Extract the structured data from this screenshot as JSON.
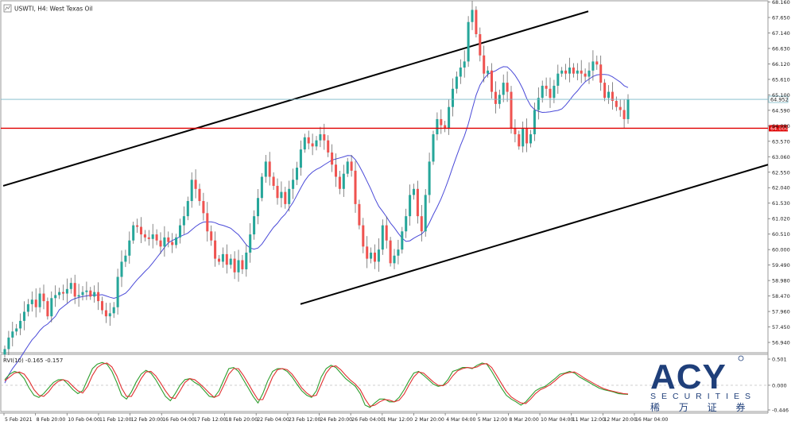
{
  "header": {
    "symbol_label": "USWTI, H4: West Texas Oil"
  },
  "indicator": {
    "label": "RVI(10) -0.165 -0.157"
  },
  "logo": {
    "brand": "ACY",
    "subtitle": "SECURITIES",
    "chinese": "稀 万 证 券"
  },
  "colors": {
    "bull": "#26a69a",
    "bear": "#ef5350",
    "ma": "#4a4ad8",
    "support_line": "#e00000",
    "price_line": "#7ab8c8",
    "channel": "#000000",
    "rvi_main": "#2e9e2e",
    "rvi_signal": "#e03030",
    "logo_blue": "#1f3f7a"
  },
  "chart_data": [
    {
      "type": "candlestick",
      "title": "USWTI, H4: West Texas Oil",
      "ylim": [
        56.6,
        68.2
      ],
      "y_tick_labels": [
        "68.160",
        "67.650",
        "67.140",
        "66.630",
        "66.120",
        "65.610",
        "65.100",
        "64.590",
        "64.080",
        "63.570",
        "63.060",
        "62.550",
        "62.040",
        "61.530",
        "61.020",
        "60.510",
        "60.000",
        "59.490",
        "58.980",
        "58.470",
        "57.960",
        "57.450",
        "56.940"
      ],
      "x_tick_labels": [
        "5 Feb 2021",
        "8 Feb 20:00",
        "10 Feb 04:00",
        "11 Feb 12:00",
        "12 Feb 20:00",
        "16 Feb 04:00",
        "17 Feb 12:00",
        "18 Feb 20:00",
        "22 Feb 04:00",
        "23 Feb 12:00",
        "24 Feb 20:00",
        "26 Feb 04:00",
        "1 Mar 12:00",
        "2 Mar 20:00",
        "4 Mar 04:00",
        "5 Mar 12:00",
        "8 Mar 20:00",
        "10 Mar 04:00",
        "11 Mar 12:00",
        "12 Mar 20:00",
        "16 Mar 04:00"
      ],
      "current_price_label": "64.952",
      "current_price": 64.952,
      "horizontal_level_label": "64.000",
      "horizontal_level": 64.0,
      "close": [
        56.72,
        57.1,
        57.3,
        57.4,
        57.65,
        57.95,
        58.2,
        58.35,
        58.1,
        58.55,
        58.3,
        57.8,
        58.4,
        58.5,
        58.6,
        58.55,
        58.7,
        58.9,
        58.45,
        58.5,
        58.6,
        58.65,
        58.45,
        58.6,
        58.3,
        58.0,
        57.8,
        57.9,
        58.1,
        59.1,
        59.6,
        59.8,
        60.3,
        60.8,
        60.75,
        60.5,
        60.4,
        60.35,
        60.5,
        60.3,
        60.1,
        60.4,
        60.25,
        60.15,
        60.4,
        60.8,
        61.1,
        61.6,
        62.3,
        62.0,
        61.6,
        61.2,
        60.6,
        60.3,
        59.7,
        59.6,
        59.85,
        59.5,
        59.7,
        59.25,
        59.65,
        59.35,
        59.9,
        60.5,
        61.1,
        61.7,
        62.4,
        62.9,
        62.4,
        62.1,
        61.7,
        61.9,
        61.5,
        62.0,
        62.3,
        62.7,
        63.3,
        63.7,
        63.5,
        63.4,
        63.6,
        63.8,
        63.6,
        63.2,
        62.8,
        62.4,
        62.0,
        62.5,
        62.9,
        62.6,
        61.5,
        60.8,
        60.1,
        59.7,
        59.9,
        59.6,
        60.0,
        60.8,
        60.3,
        59.55,
        59.8,
        60.0,
        60.6,
        61.1,
        61.8,
        62.0,
        61.1,
        60.6,
        61.8,
        62.9,
        63.8,
        64.3,
        64.1,
        64.0,
        64.7,
        65.3,
        65.7,
        66.0,
        66.2,
        67.5,
        67.9,
        67.1,
        66.4,
        65.8,
        65.9,
        65.2,
        64.8,
        65.1,
        65.5,
        65.2,
        64.0,
        63.8,
        63.4,
        64.0,
        63.5,
        63.8,
        64.6,
        65.0,
        65.4,
        65.3,
        65.0,
        65.4,
        65.8,
        65.9,
        65.8,
        66.0,
        65.8,
        65.9,
        65.8,
        65.7,
        65.9,
        66.2,
        66.1,
        65.5,
        65.0,
        65.2,
        64.9,
        64.7,
        64.6,
        64.3,
        64.95
      ]
    },
    {
      "type": "line",
      "title": "RVI(10) -0.165 -0.157",
      "ylim": [
        -0.446,
        0.501
      ],
      "y_tick_labels": [
        "0.501",
        "0.000",
        "-0.446"
      ],
      "series": [
        {
          "values": [
            0.1,
            0.2,
            0.25,
            0.22,
            0.12,
            -0.05,
            -0.18,
            -0.22,
            -0.15,
            -0.05,
            0.05,
            0.1,
            0.1,
            0.02,
            -0.08,
            -0.15,
            -0.1,
            0.1,
            0.3,
            0.38,
            0.41,
            0.38,
            0.25,
            0.05,
            -0.18,
            -0.25,
            -0.12,
            0.06,
            0.2,
            0.27,
            0.22,
            0.1,
            -0.05,
            -0.2,
            -0.28,
            -0.15,
            0.0,
            0.1,
            0.12,
            0.05,
            0.0,
            -0.1,
            -0.2,
            -0.22,
            -0.1,
            0.1,
            0.3,
            0.32,
            0.25,
            0.1,
            -0.05,
            -0.2,
            -0.32,
            -0.15,
            0.08,
            0.25,
            0.3,
            0.3,
            0.25,
            0.15,
            0.02,
            -0.1,
            -0.18,
            -0.22,
            -0.1,
            0.15,
            0.3,
            0.36,
            0.32,
            0.22,
            0.12,
            0.05,
            -0.02,
            -0.15,
            -0.36,
            -0.4,
            -0.32,
            -0.25,
            -0.25,
            -0.3,
            -0.3,
            -0.22,
            -0.08,
            0.08,
            0.22,
            0.25,
            0.18,
            0.1,
            0.02,
            -0.02,
            0.0,
            0.1,
            0.25,
            0.28,
            0.32,
            0.32,
            0.3,
            0.36,
            0.4,
            0.38,
            0.25,
            0.1,
            -0.05,
            -0.18,
            -0.25,
            -0.3,
            -0.36,
            -0.3,
            -0.2,
            -0.1,
            -0.05,
            -0.02,
            0.05,
            0.12,
            0.2,
            0.22,
            0.25,
            0.22,
            0.15,
            0.1,
            0.05,
            0.0,
            -0.05,
            -0.08,
            -0.1,
            -0.12,
            -0.15,
            -0.16,
            -0.165
          ]
        },
        {
          "values": [
            0.08,
            0.15,
            0.22,
            0.24,
            0.2,
            0.08,
            -0.08,
            -0.18,
            -0.2,
            -0.12,
            0.0,
            0.07,
            0.1,
            0.07,
            -0.02,
            -0.1,
            -0.14,
            -0.02,
            0.18,
            0.32,
            0.38,
            0.4,
            0.33,
            0.17,
            -0.05,
            -0.2,
            -0.2,
            -0.05,
            0.12,
            0.24,
            0.25,
            0.17,
            0.04,
            -0.1,
            -0.22,
            -0.24,
            -0.1,
            0.05,
            0.12,
            0.1,
            0.03,
            -0.05,
            -0.14,
            -0.22,
            -0.18,
            0.0,
            0.2,
            0.3,
            0.3,
            0.18,
            0.03,
            -0.12,
            -0.26,
            -0.26,
            -0.06,
            0.15,
            0.28,
            0.3,
            0.28,
            0.2,
            0.08,
            -0.05,
            -0.14,
            -0.2,
            -0.18,
            0.02,
            0.22,
            0.33,
            0.35,
            0.28,
            0.18,
            0.09,
            0.02,
            -0.08,
            -0.25,
            -0.38,
            -0.36,
            -0.3,
            -0.26,
            -0.27,
            -0.3,
            -0.27,
            -0.16,
            0.0,
            0.15,
            0.24,
            0.22,
            0.14,
            0.06,
            0.0,
            -0.01,
            0.05,
            0.17,
            0.26,
            0.3,
            0.32,
            0.31,
            0.33,
            0.38,
            0.39,
            0.32,
            0.18,
            0.03,
            -0.11,
            -0.21,
            -0.27,
            -0.32,
            -0.33,
            -0.25,
            -0.15,
            -0.08,
            -0.04,
            0.01,
            0.08,
            0.16,
            0.21,
            0.23,
            0.24,
            0.19,
            0.13,
            0.08,
            0.03,
            -0.02,
            -0.06,
            -0.09,
            -0.11,
            -0.13,
            -0.15,
            -0.157
          ]
        }
      ]
    }
  ]
}
